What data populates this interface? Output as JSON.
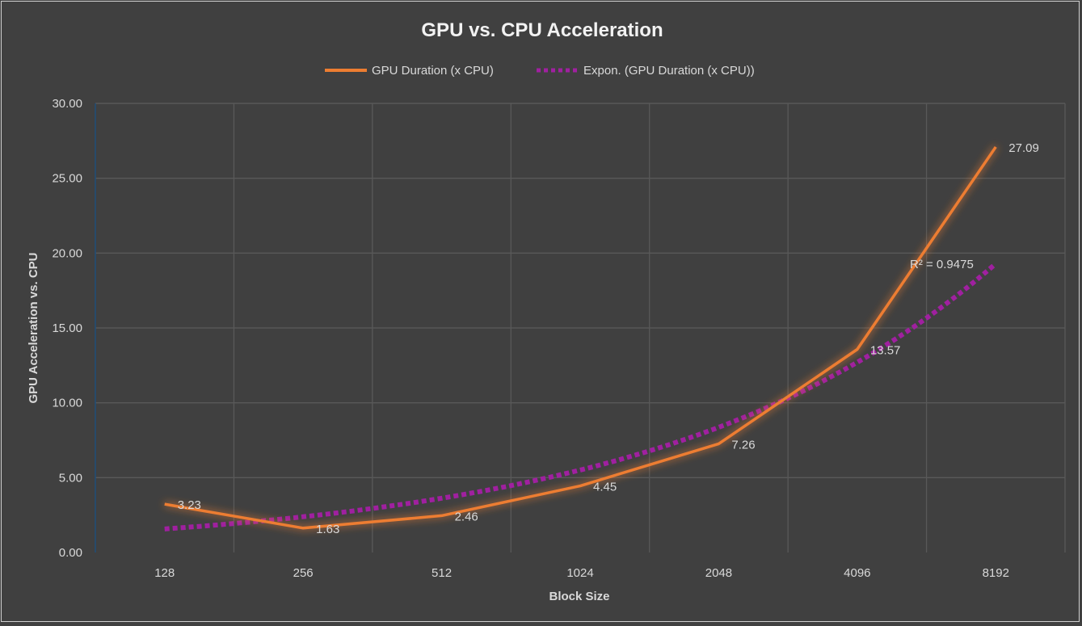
{
  "chart_data": {
    "type": "line",
    "title": "GPU vs. CPU Acceleration",
    "xlabel": "Block Size",
    "ylabel": "GPU Acceleration vs. CPU",
    "categories": [
      "128",
      "256",
      "512",
      "1024",
      "2048",
      "4096",
      "8192"
    ],
    "ylim": [
      0,
      30
    ],
    "yticks": [
      "0.00",
      "5.00",
      "10.00",
      "15.00",
      "20.00",
      "25.00",
      "30.00"
    ],
    "grid": true,
    "legend_position": "top",
    "series": [
      {
        "name": "GPU Duration (x CPU)",
        "values": [
          3.23,
          1.63,
          2.46,
          4.45,
          7.26,
          13.57,
          27.09
        ],
        "data_labels": [
          "3.23",
          "1.63",
          "2.46",
          "4.45",
          "7.26",
          "13.57",
          "27.09"
        ],
        "color": "#ed7d31",
        "style": "solid, glow"
      }
    ],
    "trendline": {
      "name": "Expon. (GPU Duration (x CPU))",
      "type": "exponential",
      "r_squared_label": "R² = 0.9475",
      "color": "#a020a0",
      "style": "dotted"
    },
    "colors": {
      "background": "#404040",
      "grid": "#595959",
      "text": "#d9d9d9",
      "title": "#f2f2f2"
    }
  }
}
